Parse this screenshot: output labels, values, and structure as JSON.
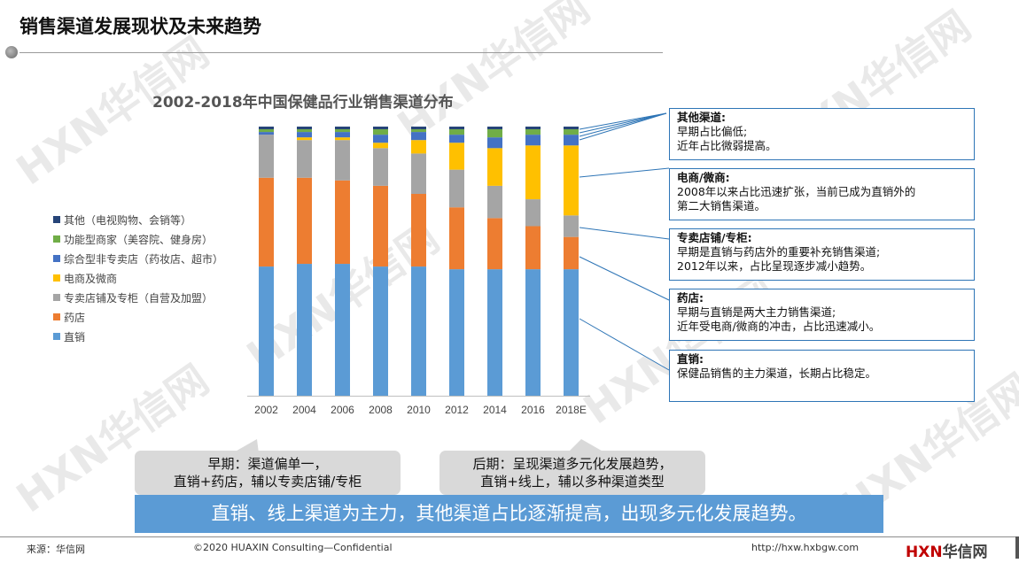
{
  "page": {
    "title": "销售渠道发展现状及未来趋势"
  },
  "watermark": "HXN华信网",
  "chart_data": {
    "type": "bar",
    "stacked": true,
    "title": "2002-2018年中国保健品行业销售渠道分布",
    "categories": [
      "2002",
      "2004",
      "2006",
      "2008",
      "2010",
      "2012",
      "2014",
      "2016",
      "2018E"
    ],
    "ylim": [
      0,
      100
    ],
    "legend_position": "left",
    "series": [
      {
        "name": "直销",
        "color": "#5b9bd5",
        "values": [
          48,
          49,
          49,
          48,
          48,
          47,
          47,
          47,
          47
        ]
      },
      {
        "name": "药店",
        "color": "#ed7d31",
        "values": [
          33,
          32,
          31,
          30,
          27,
          23,
          19,
          16,
          12
        ]
      },
      {
        "name": "专卖店铺及专柜（自营及加盟）",
        "color": "#a5a5a5",
        "values": [
          16,
          14,
          15,
          14,
          15,
          14,
          12,
          10,
          8
        ]
      },
      {
        "name": "电商及微商",
        "color": "#ffc000",
        "values": [
          0,
          1,
          1,
          2,
          5,
          10,
          14,
          20,
          26
        ]
      },
      {
        "name": "综合型非专卖店（药妆店、超市）",
        "color": "#4472c4",
        "values": [
          1,
          2,
          2,
          3,
          3,
          3,
          4,
          4,
          4
        ]
      },
      {
        "name": "功能型商家（美容院、健身房）",
        "color": "#70ad47",
        "values": [
          1,
          1,
          1,
          2,
          1,
          2,
          3,
          2,
          2
        ]
      },
      {
        "name": "其他（电视购物、会销等）",
        "color": "#264478",
        "values": [
          1,
          1,
          1,
          1,
          1,
          1,
          1,
          1,
          1
        ]
      }
    ]
  },
  "notes": [
    {
      "title": "其他渠道:",
      "lines": [
        "早期占比偏低;",
        "近年占比微弱提高。"
      ]
    },
    {
      "title": "电商/微商:",
      "lines": [
        "2008年以来占比迅速扩张，当前已成为直销外的",
        "第二大销售渠道。"
      ]
    },
    {
      "title": "专卖店铺/专柜:",
      "lines": [
        "早期是直销与药店外的重要补充销售渠道;",
        "2012年以来，占比呈现逐步减小趋势。"
      ]
    },
    {
      "title": "药店:",
      "lines": [
        "早期与直销是两大主力销售渠道;",
        "近年受电商/微商的冲击，占比迅速减小。"
      ]
    },
    {
      "title": "直销:",
      "lines": [
        "保健品销售的主力渠道，长期占比稳定。"
      ]
    }
  ],
  "bubbles": {
    "early": {
      "line1": "早期：渠道偏单一，",
      "line2": "直销+药店，辅以专卖店铺/专柜"
    },
    "late": {
      "line1": "后期：呈现渠道多元化发展趋势，",
      "line2": "直销+线上，辅以多种渠道类型"
    }
  },
  "conclusion": "直销、线上渠道为主力，其他渠道占比逐渐提高，出现多元化发展趋势。",
  "footer": {
    "source": "来源：华信网",
    "copyright": "©2020 HUAXIN Consulting—Confidential",
    "url": "http://hxw.hxbgw.com",
    "logo_red": "HXN",
    "logo_dark": "华信网"
  }
}
